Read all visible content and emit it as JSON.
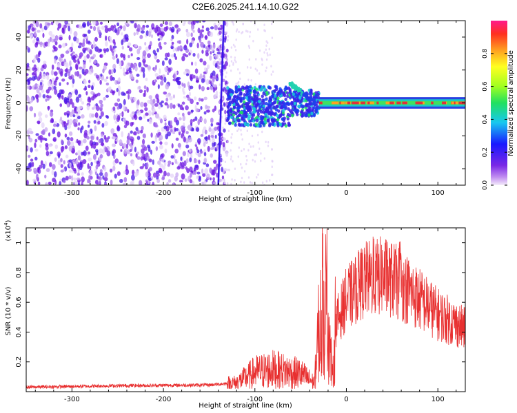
{
  "title": "C2E6.2025.241.14.10.G22",
  "chart_data": [
    {
      "type": "heatmap",
      "title": "C2E6.2025.241.14.10.G22",
      "xlabel": "Height of straight line (km)",
      "ylabel": "Frequency (Hz)",
      "xlim": [
        -350,
        130
      ],
      "ylim": [
        -50,
        50
      ],
      "x_ticks": [
        -300,
        -200,
        -100,
        0,
        100
      ],
      "y_ticks": [
        -40,
        -20,
        0,
        20,
        40
      ],
      "x_tick_labels": [
        "-300",
        "-200",
        "-100",
        "0",
        "100"
      ],
      "y_tick_labels": [
        "-40",
        "-20",
        "0",
        "20",
        "40"
      ],
      "colorbar": {
        "label": "Normalized spectral amplitude",
        "range": [
          0,
          1
        ],
        "ticks": [
          0.0,
          0.2,
          0.4,
          0.6,
          0.8
        ],
        "tick_labels": [
          "0.0",
          "0.2",
          "0.4",
          "0.6",
          "0.8"
        ]
      },
      "features": {
        "noise_region_km": [
          -350,
          -130
        ],
        "streak_km": [
          -140,
          -132
        ],
        "transition_region_km": [
          -130,
          -30
        ],
        "tone_region_km": [
          -30,
          130
        ],
        "tone_frequency_hz": 0
      }
    },
    {
      "type": "line",
      "xlabel": "Height of straight line (km)",
      "ylabel": "SNR (10 * v/v)",
      "y_scale_note": "(x10^4)",
      "xlim": [
        -350,
        130
      ],
      "ylim": [
        0,
        1.1
      ],
      "x_ticks": [
        -300,
        -200,
        -100,
        0,
        100
      ],
      "y_ticks": [
        0.2,
        0.4,
        0.6,
        0.8,
        1.0
      ],
      "x_tick_labels": [
        "-300",
        "-200",
        "-100",
        "0",
        "100"
      ],
      "y_tick_labels": [
        "0.2",
        "0.4",
        "0.6",
        "0.8",
        "1"
      ],
      "color": "#e83030",
      "envelope": {
        "x": [
          -350,
          -250,
          -150,
          -120,
          -100,
          -80,
          -50,
          -35,
          -30,
          -25,
          -20,
          -15,
          -12,
          -5,
          0,
          20,
          40,
          60,
          80,
          100,
          130
        ],
        "y": [
          0.03,
          0.04,
          0.045,
          0.06,
          0.13,
          0.15,
          0.12,
          0.06,
          0.42,
          0.55,
          0.5,
          0.07,
          0.45,
          0.55,
          0.62,
          0.75,
          0.78,
          0.72,
          0.62,
          0.52,
          0.42
        ]
      }
    }
  ],
  "labels": {
    "top_xlabel": "Height of straight line (km)",
    "top_ylabel": "Frequency (Hz)",
    "bottom_xlabel": "Height of straight line (km)",
    "bottom_ylabel": "SNR (10 * v/v)",
    "bottom_scale_prefix": "(x10",
    "bottom_scale_exp": "4",
    "bottom_scale_suffix": ")",
    "colorbar_label": "Normalized spectral amplitude"
  },
  "colors": {
    "line": "#e83030",
    "noise": "#7a28e6",
    "tone_core": "#e0303a",
    "tone_mid": "#18c8c8",
    "tone_outer": "#2a40e0"
  }
}
